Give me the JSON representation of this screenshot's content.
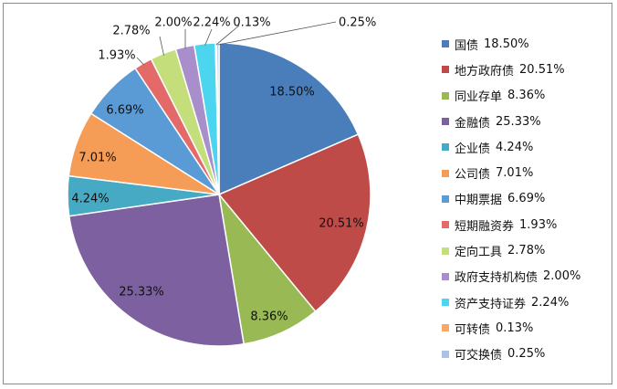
{
  "chart_data": {
    "type": "pie",
    "title": "",
    "legend_position": "right",
    "slices": [
      {
        "name": "国债",
        "value": 18.5,
        "label": "18.50%",
        "color": "#4a7ebb"
      },
      {
        "name": "地方政府债",
        "value": 20.51,
        "label": "20.51%",
        "color": "#be4b48"
      },
      {
        "name": "同业存单",
        "value": 8.36,
        "label": "8.36%",
        "color": "#98b954"
      },
      {
        "name": "金融债",
        "value": 25.33,
        "label": "25.33%",
        "color": "#7d60a0"
      },
      {
        "name": "企业债",
        "value": 4.24,
        "label": "4.24%",
        "color": "#46aac4"
      },
      {
        "name": "公司债",
        "value": 7.01,
        "label": "7.01%",
        "color": "#f59d56"
      },
      {
        "name": "中期票据",
        "value": 6.69,
        "label": "6.69%",
        "color": "#5b9bd5"
      },
      {
        "name": "短期融资券",
        "value": 1.93,
        "label": "1.93%",
        "color": "#e46a6a"
      },
      {
        "name": "定向工具",
        "value": 2.78,
        "label": "2.78%",
        "color": "#c3de7a"
      },
      {
        "name": "政府支持机构债",
        "value": 2.0,
        "label": "2.00%",
        "color": "#a88fcc"
      },
      {
        "name": "资产支持证券",
        "value": 2.24,
        "label": "2.24%",
        "color": "#4cd5ef"
      },
      {
        "name": "可转债",
        "value": 0.13,
        "label": "0.13%",
        "color": "#f7a863"
      },
      {
        "name": "可交换债",
        "value": 0.25,
        "label": "0.25%",
        "color": "#a9c2e6"
      }
    ]
  }
}
